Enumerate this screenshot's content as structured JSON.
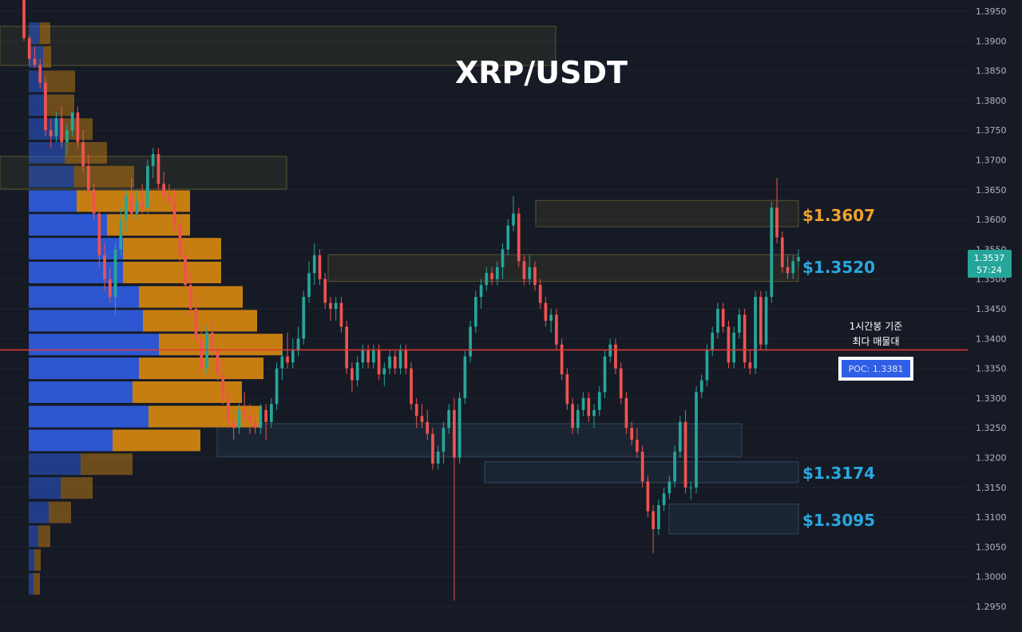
{
  "chart_data": {
    "type": "candlestick",
    "title": "XRP/USDT",
    "y_axis": {
      "ylim": [
        1.2915,
        1.3985
      ],
      "tick_labels": [
        "1.3950",
        "1.3900",
        "1.3850",
        "1.3800",
        "1.3750",
        "1.3700",
        "1.3650",
        "1.3600",
        "1.3550",
        "1.3500",
        "1.3450",
        "1.3400",
        "1.3350",
        "1.3300",
        "1.3250",
        "1.3200",
        "1.3150",
        "1.3100",
        "1.3050",
        "1.3000",
        "1.2950"
      ]
    },
    "price_tag": {
      "price": "1.3537",
      "countdown": "57:24",
      "color": "#26a69a"
    },
    "levels": [
      {
        "label": "$1.3607",
        "price": 1.3607,
        "color": "#f0a22d",
        "zone": [
          1.3588,
          1.3632
        ]
      },
      {
        "label": "$1.3520",
        "price": 1.352,
        "color": "#2aa7e0",
        "zone": [
          1.3496,
          1.3541
        ]
      },
      {
        "label": "$1.3174",
        "price": 1.3174,
        "color": "#2aa7e0",
        "zone": [
          1.3158,
          1.3193
        ]
      },
      {
        "label": "$1.3095",
        "price": 1.3095,
        "color": "#2aa7e0",
        "zone": [
          1.3072,
          1.3122
        ]
      }
    ],
    "poc": {
      "price": 1.3381,
      "label": "POC: 1.3381",
      "annotation_line1": "1시간봉 기준",
      "annotation_line2": "최다 매물대",
      "line_color": "#e53935"
    },
    "colors": {
      "up": "#26a69a",
      "down": "#ef5350",
      "volume_buy": "#2e5bd9",
      "volume_sell": "#d98a0f",
      "background": "#151a25",
      "grid": "#1f2430"
    },
    "volume_profile": [
      {
        "price": 1.2988,
        "buy": 6,
        "sell": 8
      },
      {
        "price": 1.3028,
        "buy": 7,
        "sell": 8
      },
      {
        "price": 1.3068,
        "buy": 12,
        "sell": 15
      },
      {
        "price": 1.3108,
        "buy": 25,
        "sell": 28
      },
      {
        "price": 1.3149,
        "buy": 40,
        "sell": 40
      },
      {
        "price": 1.3189,
        "buy": 65,
        "sell": 65
      },
      {
        "price": 1.3229,
        "buy": 105,
        "sell": 110
      },
      {
        "price": 1.3269,
        "buy": 150,
        "sell": 142
      },
      {
        "price": 1.331,
        "buy": 130,
        "sell": 137
      },
      {
        "price": 1.335,
        "buy": 138,
        "sell": 156
      },
      {
        "price": 1.339,
        "buy": 163,
        "sell": 155
      },
      {
        "price": 1.343,
        "buy": 143,
        "sell": 143
      },
      {
        "price": 1.347,
        "buy": 138,
        "sell": 130
      },
      {
        "price": 1.3511,
        "buy": 118,
        "sell": 123
      },
      {
        "price": 1.3551,
        "buy": 118,
        "sell": 123
      },
      {
        "price": 1.3591,
        "buy": 98,
        "sell": 104
      },
      {
        "price": 1.3631,
        "buy": 60,
        "sell": 142
      },
      {
        "price": 1.3672,
        "buy": 57,
        "sell": 75
      },
      {
        "price": 1.3712,
        "buy": 45,
        "sell": 53
      },
      {
        "price": 1.3752,
        "buy": 40,
        "sell": 40
      },
      {
        "price": 1.3792,
        "buy": 22,
        "sell": 35
      },
      {
        "price": 1.3832,
        "buy": 18,
        "sell": 40
      },
      {
        "price": 1.3873,
        "buy": 18,
        "sell": 10
      },
      {
        "price": 1.3913,
        "buy": 14,
        "sell": 13
      }
    ],
    "candles": [
      [
        1.3975,
        1.3985,
        1.39,
        1.3905
      ],
      [
        1.3905,
        1.391,
        1.386,
        1.387
      ],
      [
        1.387,
        1.389,
        1.3855,
        1.386
      ],
      [
        1.386,
        1.387,
        1.382,
        1.383
      ],
      [
        1.383,
        1.384,
        1.374,
        1.375
      ],
      [
        1.375,
        1.377,
        1.372,
        1.374
      ],
      [
        1.374,
        1.378,
        1.373,
        1.377
      ],
      [
        1.377,
        1.379,
        1.372,
        1.373
      ],
      [
        1.373,
        1.376,
        1.371,
        1.375
      ],
      [
        1.375,
        1.378,
        1.374,
        1.378
      ],
      [
        1.378,
        1.379,
        1.372,
        1.373
      ],
      [
        1.373,
        1.375,
        1.368,
        1.369
      ],
      [
        1.369,
        1.371,
        1.364,
        1.365
      ],
      [
        1.365,
        1.366,
        1.36,
        1.361
      ],
      [
        1.361,
        1.363,
        1.352,
        1.354
      ],
      [
        1.354,
        1.356,
        1.348,
        1.35
      ],
      [
        1.35,
        1.352,
        1.346,
        1.347
      ],
      [
        1.347,
        1.356,
        1.344,
        1.355
      ],
      [
        1.355,
        1.362,
        1.354,
        1.36
      ],
      [
        1.36,
        1.365,
        1.358,
        1.364
      ],
      [
        1.364,
        1.367,
        1.36,
        1.361
      ],
      [
        1.361,
        1.365,
        1.36,
        1.363
      ],
      [
        1.363,
        1.366,
        1.361,
        1.362
      ],
      [
        1.362,
        1.37,
        1.361,
        1.369
      ],
      [
        1.369,
        1.372,
        1.367,
        1.371
      ],
      [
        1.371,
        1.372,
        1.365,
        1.366
      ],
      [
        1.366,
        1.368,
        1.363,
        1.364
      ],
      [
        1.364,
        1.366,
        1.362,
        1.363
      ],
      [
        1.363,
        1.365,
        1.358,
        1.359
      ],
      [
        1.359,
        1.36,
        1.353,
        1.354
      ],
      [
        1.354,
        1.356,
        1.348,
        1.349
      ],
      [
        1.349,
        1.351,
        1.344,
        1.345
      ],
      [
        1.345,
        1.347,
        1.339,
        1.34
      ],
      [
        1.34,
        1.342,
        1.334,
        1.335
      ],
      [
        1.335,
        1.342,
        1.334,
        1.341
      ],
      [
        1.341,
        1.343,
        1.337,
        1.338
      ],
      [
        1.338,
        1.34,
        1.333,
        1.334
      ],
      [
        1.334,
        1.336,
        1.329,
        1.33
      ],
      [
        1.33,
        1.331,
        1.325,
        1.326
      ],
      [
        1.326,
        1.328,
        1.323,
        1.325
      ],
      [
        1.325,
        1.329,
        1.324,
        1.328
      ],
      [
        1.328,
        1.331,
        1.326,
        1.327
      ],
      [
        1.327,
        1.329,
        1.324,
        1.326
      ],
      [
        1.326,
        1.328,
        1.324,
        1.325
      ],
      [
        1.325,
        1.329,
        1.324,
        1.328
      ],
      [
        1.328,
        1.329,
        1.323,
        1.326
      ],
      [
        1.326,
        1.33,
        1.325,
        1.329
      ],
      [
        1.329,
        1.336,
        1.328,
        1.335
      ],
      [
        1.335,
        1.338,
        1.333,
        1.337
      ],
      [
        1.337,
        1.341,
        1.335,
        1.336
      ],
      [
        1.336,
        1.34,
        1.335,
        1.338
      ],
      [
        1.338,
        1.342,
        1.337,
        1.34
      ],
      [
        1.34,
        1.348,
        1.339,
        1.347
      ],
      [
        1.347,
        1.353,
        1.346,
        1.351
      ],
      [
        1.351,
        1.356,
        1.349,
        1.354
      ],
      [
        1.354,
        1.355,
        1.349,
        1.35
      ],
      [
        1.35,
        1.351,
        1.345,
        1.346
      ],
      [
        1.346,
        1.347,
        1.343,
        1.345
      ],
      [
        1.345,
        1.347,
        1.343,
        1.346
      ],
      [
        1.346,
        1.347,
        1.341,
        1.342
      ],
      [
        1.342,
        1.343,
        1.334,
        1.335
      ],
      [
        1.335,
        1.336,
        1.331,
        1.333
      ],
      [
        1.333,
        1.337,
        1.332,
        1.336
      ],
      [
        1.336,
        1.339,
        1.335,
        1.338
      ],
      [
        1.338,
        1.339,
        1.335,
        1.336
      ],
      [
        1.336,
        1.339,
        1.335,
        1.338
      ],
      [
        1.338,
        1.339,
        1.333,
        1.334
      ],
      [
        1.334,
        1.336,
        1.332,
        1.335
      ],
      [
        1.335,
        1.338,
        1.334,
        1.337
      ],
      [
        1.337,
        1.338,
        1.334,
        1.335
      ],
      [
        1.335,
        1.339,
        1.334,
        1.338
      ],
      [
        1.338,
        1.339,
        1.334,
        1.335
      ],
      [
        1.335,
        1.336,
        1.328,
        1.329
      ],
      [
        1.329,
        1.33,
        1.325,
        1.327
      ],
      [
        1.327,
        1.329,
        1.325,
        1.326
      ],
      [
        1.326,
        1.328,
        1.323,
        1.324
      ],
      [
        1.324,
        1.325,
        1.318,
        1.319
      ],
      [
        1.319,
        1.322,
        1.318,
        1.321
      ],
      [
        1.321,
        1.326,
        1.319,
        1.325
      ],
      [
        1.325,
        1.329,
        1.324,
        1.328
      ],
      [
        1.328,
        1.33,
        1.296,
        1.32
      ],
      [
        1.32,
        1.331,
        1.319,
        1.33
      ],
      [
        1.33,
        1.338,
        1.329,
        1.337
      ],
      [
        1.337,
        1.343,
        1.336,
        1.342
      ],
      [
        1.342,
        1.348,
        1.341,
        1.347
      ],
      [
        1.347,
        1.35,
        1.345,
        1.349
      ],
      [
        1.349,
        1.352,
        1.348,
        1.351
      ],
      [
        1.351,
        1.352,
        1.349,
        1.35
      ],
      [
        1.35,
        1.353,
        1.349,
        1.352
      ],
      [
        1.352,
        1.356,
        1.35,
        1.355
      ],
      [
        1.355,
        1.36,
        1.354,
        1.359
      ],
      [
        1.359,
        1.364,
        1.358,
        1.361
      ],
      [
        1.361,
        1.362,
        1.352,
        1.353
      ],
      [
        1.353,
        1.354,
        1.349,
        1.35
      ],
      [
        1.35,
        1.354,
        1.349,
        1.352
      ],
      [
        1.352,
        1.353,
        1.348,
        1.349
      ],
      [
        1.349,
        1.35,
        1.345,
        1.346
      ],
      [
        1.346,
        1.347,
        1.342,
        1.343
      ],
      [
        1.343,
        1.345,
        1.341,
        1.344
      ],
      [
        1.344,
        1.345,
        1.338,
        1.339
      ],
      [
        1.339,
        1.34,
        1.333,
        1.334
      ],
      [
        1.334,
        1.335,
        1.328,
        1.329
      ],
      [
        1.329,
        1.33,
        1.324,
        1.325
      ],
      [
        1.325,
        1.329,
        1.324,
        1.328
      ],
      [
        1.328,
        1.331,
        1.327,
        1.33
      ],
      [
        1.33,
        1.331,
        1.326,
        1.327
      ],
      [
        1.327,
        1.329,
        1.325,
        1.328
      ],
      [
        1.328,
        1.332,
        1.327,
        1.331
      ],
      [
        1.331,
        1.338,
        1.33,
        1.337
      ],
      [
        1.337,
        1.34,
        1.336,
        1.339
      ],
      [
        1.339,
        1.34,
        1.334,
        1.335
      ],
      [
        1.335,
        1.336,
        1.329,
        1.33
      ],
      [
        1.33,
        1.331,
        1.324,
        1.325
      ],
      [
        1.325,
        1.326,
        1.322,
        1.323
      ],
      [
        1.323,
        1.325,
        1.32,
        1.321
      ],
      [
        1.321,
        1.322,
        1.315,
        1.316
      ],
      [
        1.316,
        1.317,
        1.31,
        1.311
      ],
      [
        1.311,
        1.312,
        1.304,
        1.308
      ],
      [
        1.308,
        1.313,
        1.307,
        1.312
      ],
      [
        1.312,
        1.315,
        1.311,
        1.314
      ],
      [
        1.314,
        1.317,
        1.313,
        1.316
      ],
      [
        1.316,
        1.322,
        1.315,
        1.321
      ],
      [
        1.321,
        1.327,
        1.32,
        1.326
      ],
      [
        1.326,
        1.328,
        1.314,
        1.315
      ],
      [
        1.315,
        1.316,
        1.313,
        1.315
      ],
      [
        1.315,
        1.332,
        1.314,
        1.331
      ],
      [
        1.331,
        1.334,
        1.33,
        1.333
      ],
      [
        1.333,
        1.339,
        1.332,
        1.338
      ],
      [
        1.338,
        1.342,
        1.337,
        1.341
      ],
      [
        1.341,
        1.346,
        1.34,
        1.345
      ],
      [
        1.345,
        1.346,
        1.341,
        1.342
      ],
      [
        1.342,
        1.343,
        1.335,
        1.336
      ],
      [
        1.336,
        1.342,
        1.335,
        1.341
      ],
      [
        1.341,
        1.345,
        1.34,
        1.344
      ],
      [
        1.344,
        1.345,
        1.335,
        1.336
      ],
      [
        1.336,
        1.338,
        1.334,
        1.335
      ],
      [
        1.335,
        1.348,
        1.334,
        1.347
      ],
      [
        1.347,
        1.348,
        1.338,
        1.339
      ],
      [
        1.339,
        1.348,
        1.338,
        1.347
      ],
      [
        1.347,
        1.363,
        1.346,
        1.362
      ],
      [
        1.362,
        1.367,
        1.356,
        1.357
      ],
      [
        1.357,
        1.358,
        1.351,
        1.352
      ],
      [
        1.352,
        1.354,
        1.35,
        1.351
      ],
      [
        1.351,
        1.354,
        1.35,
        1.353
      ],
      [
        1.353,
        1.355,
        1.352,
        1.3537
      ]
    ]
  }
}
